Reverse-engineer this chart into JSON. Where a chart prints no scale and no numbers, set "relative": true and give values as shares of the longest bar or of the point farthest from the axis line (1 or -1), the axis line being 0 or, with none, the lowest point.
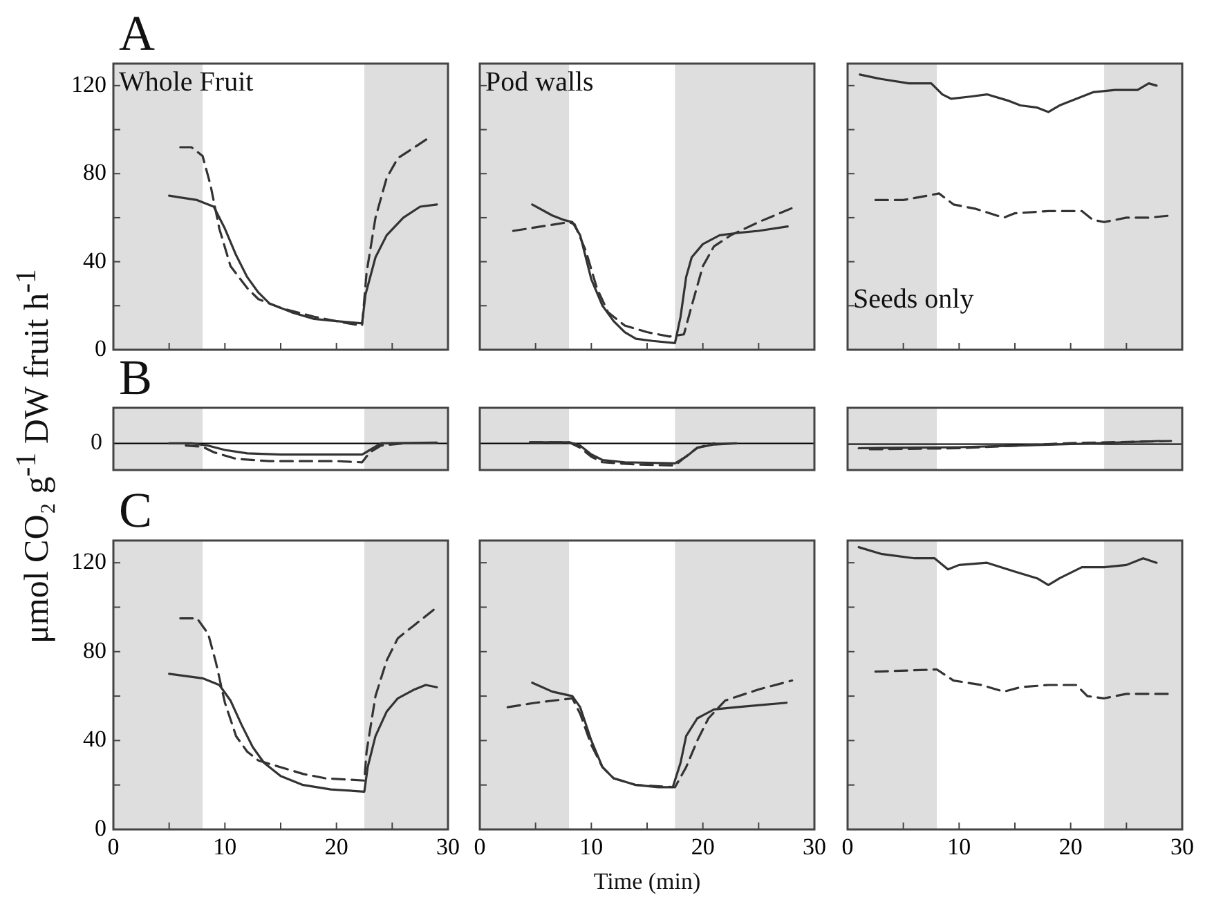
{
  "chart_data": [
    {
      "type": "line",
      "title": "A",
      "annotations": [
        "Whole Fruit"
      ],
      "xlim": [
        0,
        30
      ],
      "xticks": [
        0,
        {
          "value": 5,
          "label": null
        },
        10,
        {
          "value": 15,
          "label": null
        },
        20,
        {
          "value": 25,
          "label": null
        },
        30
      ],
      "ylim": [
        0,
        130
      ],
      "yticks": [
        0,
        {
          "value": 20,
          "label": null
        },
        40,
        {
          "value": 60,
          "label": null
        },
        80,
        {
          "value": 100,
          "label": null
        },
        120
      ],
      "tick_labels": "y",
      "bands": [
        {
          "axis": "x",
          "from": 0,
          "to": 8,
          "color": "#dedede"
        },
        {
          "axis": "x",
          "from": 22.5,
          "to": 30,
          "color": "#dedede"
        }
      ],
      "series": [
        {
          "color": "#333333",
          "line_style": "solid",
          "x": [
            5,
            7.5,
            9,
            10,
            11,
            12,
            13,
            14,
            16,
            18,
            20,
            22.3,
            22.6,
            23.5,
            24.5,
            26,
            27.5,
            29
          ],
          "values": [
            70,
            68,
            65,
            55,
            43,
            33,
            26,
            21,
            17,
            14,
            13,
            12,
            25,
            42,
            52,
            60,
            65,
            66
          ]
        },
        {
          "color": "#333333",
          "line_style": "dashed",
          "x": [
            6,
            7,
            8,
            8.7,
            9.5,
            10.5,
            12,
            13,
            15,
            18,
            21,
            22.3,
            22.7,
            23.5,
            24.5,
            25.5,
            27,
            28.5
          ],
          "values": [
            92,
            92,
            88,
            75,
            55,
            38,
            28,
            23,
            19,
            15,
            12,
            11,
            35,
            60,
            78,
            87,
            92,
            97
          ]
        }
      ]
    },
    {
      "type": "line",
      "annotations": [
        "Pod walls"
      ],
      "xlim": [
        0,
        30
      ],
      "xticks": [
        0,
        {
          "value": 5,
          "label": null
        },
        10,
        {
          "value": 15,
          "label": null
        },
        20,
        {
          "value": 25,
          "label": null
        },
        30
      ],
      "ylim": [
        0,
        130
      ],
      "yticks": [
        0,
        {
          "value": 20,
          "label": null
        },
        40,
        {
          "value": 60,
          "label": null
        },
        80,
        {
          "value": 100,
          "label": null
        },
        120
      ],
      "tick_labels": false,
      "bands": [
        {
          "axis": "x",
          "from": 0,
          "to": 8,
          "color": "#dedede"
        },
        {
          "axis": "x",
          "from": 17.5,
          "to": 30,
          "color": "#dedede"
        }
      ],
      "series": [
        {
          "color": "#333333",
          "line_style": "solid",
          "x": [
            4.7,
            6.5,
            7.5,
            8.3,
            9,
            9.5,
            10,
            11,
            12,
            13,
            14,
            15.5,
            17.5,
            18,
            18.5,
            19,
            20,
            21.5,
            23,
            25,
            27.6
          ],
          "values": [
            66,
            61,
            59,
            58,
            52,
            42,
            32,
            20,
            13,
            8,
            5,
            4,
            3,
            15,
            33,
            42,
            48,
            52,
            53,
            54,
            56
          ]
        },
        {
          "color": "#333333",
          "line_style": "dashed",
          "x": [
            3,
            5.5,
            8,
            8.5,
            9.5,
            10.5,
            11.5,
            13,
            15,
            17,
            18.3,
            19,
            20,
            21,
            22.5,
            25,
            28.3
          ],
          "values": [
            54,
            56,
            58,
            57,
            45,
            28,
            17,
            11,
            8,
            6,
            7,
            20,
            38,
            47,
            52,
            58,
            65
          ]
        }
      ]
    },
    {
      "type": "line",
      "annotations": [
        "Seeds only"
      ],
      "xlim": [
        0,
        30
      ],
      "xticks": [
        0,
        {
          "value": 5,
          "label": null
        },
        10,
        {
          "value": 15,
          "label": null
        },
        20,
        {
          "value": 25,
          "label": null
        },
        30
      ],
      "ylim": [
        0,
        130
      ],
      "yticks": [
        0,
        {
          "value": 20,
          "label": null
        },
        40,
        {
          "value": 60,
          "label": null
        },
        80,
        {
          "value": 100,
          "label": null
        },
        120
      ],
      "tick_labels": false,
      "bands": [
        {
          "axis": "x",
          "from": 0,
          "to": 8,
          "color": "#dedede"
        },
        {
          "axis": "x",
          "from": 23,
          "to": 30,
          "color": "#dedede"
        }
      ],
      "series": [
        {
          "color": "#333333",
          "line_style": "solid",
          "x": [
            1.1,
            3,
            5.5,
            7.5,
            8.5,
            9.3,
            11,
            12.5,
            14.5,
            15.5,
            17,
            18,
            19,
            20.5,
            22,
            24,
            26,
            27,
            27.7
          ],
          "values": [
            125,
            123,
            121,
            121,
            116,
            114,
            115,
            116,
            113,
            111,
            110,
            108,
            111,
            114,
            117,
            118,
            118,
            121,
            120
          ]
        },
        {
          "color": "#333333",
          "line_style": "dashed",
          "x": [
            2.5,
            5,
            8.2,
            9.5,
            11.5,
            14,
            15,
            18,
            21,
            22,
            23,
            25,
            27,
            29
          ],
          "values": [
            68,
            68,
            71,
            66,
            64,
            60,
            62,
            63,
            63,
            59,
            58,
            60,
            60,
            61
          ]
        }
      ]
    },
    {
      "type": "line",
      "title": "B",
      "ylabel": "μmol CO₂ g$^{-1}$ DW fruit h$^{-1}$",
      "relative": true,
      "xlim": [
        0,
        30
      ],
      "tick_labels": false,
      "ref_lines": [
        {
          "axis": "y",
          "value": 0,
          "label": "0",
          "color": "#000000"
        }
      ],
      "bands": [
        {
          "axis": "x",
          "from": 0,
          "to": 8,
          "color": "#dedede"
        },
        {
          "axis": "x",
          "from": 22.5,
          "to": 30,
          "color": "#dedede"
        }
      ],
      "series": [
        {
          "color": "#333333",
          "line_style": "solid",
          "x": [
            5,
            7,
            8.5,
            10,
            12,
            15,
            20,
            22.3,
            23,
            24,
            29
          ],
          "values": [
            0,
            0,
            -0.12,
            -0.35,
            -0.53,
            -0.59,
            -0.59,
            -0.59,
            -0.35,
            0,
            0.04
          ]
        },
        {
          "color": "#333333",
          "line_style": "dashed",
          "x": [
            6.5,
            8,
            9,
            11,
            14,
            20,
            22.3,
            23,
            24,
            26
          ],
          "values": [
            -0.12,
            -0.18,
            -0.47,
            -0.82,
            -0.94,
            -0.94,
            -1,
            -0.47,
            -0.12,
            0
          ]
        }
      ]
    },
    {
      "type": "line",
      "relative": true,
      "xlim": [
        0,
        30
      ],
      "tick_labels": false,
      "ref_lines": [
        {
          "axis": "y",
          "value": 0,
          "color": "#000000"
        }
      ],
      "bands": [
        {
          "axis": "x",
          "from": 0,
          "to": 8,
          "color": "#dedede"
        },
        {
          "axis": "x",
          "from": 17.5,
          "to": 30,
          "color": "#dedede"
        }
      ],
      "series": [
        {
          "color": "#333333",
          "line_style": "solid",
          "x": [
            4.5,
            8,
            9,
            10,
            11,
            13,
            17.5,
            18.5,
            19.5,
            21,
            23
          ],
          "values": [
            0.05,
            0.05,
            -0.1,
            -0.5,
            -0.75,
            -0.85,
            -0.9,
            -0.6,
            -0.2,
            -0.05,
            0
          ]
        },
        {
          "color": "#333333",
          "line_style": "dashed",
          "x": [
            4.5,
            8,
            9,
            10,
            11,
            14,
            17.5,
            18.2,
            19.5,
            21
          ],
          "values": [
            0.05,
            0.05,
            -0.2,
            -0.6,
            -0.85,
            -0.95,
            -1,
            -0.7,
            -0.2,
            0
          ]
        }
      ]
    },
    {
      "type": "line",
      "relative": true,
      "xlim": [
        0,
        30
      ],
      "tick_labels": false,
      "ref_lines": [
        {
          "axis": "y",
          "value": 0,
          "color": "#000000"
        }
      ],
      "bands": [
        {
          "axis": "x",
          "from": 0,
          "to": 8,
          "color": "#dedede"
        },
        {
          "axis": "x",
          "from": 23,
          "to": 30,
          "color": "#dedede"
        }
      ],
      "series": [
        {
          "color": "#333333",
          "line_style": "solid",
          "x": [
            1,
            10,
            20,
            28
          ],
          "values": [
            -0.8,
            -0.6,
            0,
            0.6
          ]
        },
        {
          "color": "#333333",
          "line_style": "dashed",
          "x": [
            2,
            10,
            20,
            29
          ],
          "values": [
            -1,
            -0.8,
            0.2,
            0.6
          ]
        }
      ]
    },
    {
      "type": "line",
      "title": "C",
      "xlim": [
        0,
        30
      ],
      "xticks": [
        0,
        {
          "value": 5,
          "label": null
        },
        10,
        {
          "value": 15,
          "label": null
        },
        20,
        {
          "value": 25,
          "label": null
        },
        30
      ],
      "ylim": [
        0,
        130
      ],
      "yticks": [
        0,
        {
          "value": 20,
          "label": null
        },
        40,
        {
          "value": 60,
          "label": null
        },
        80,
        {
          "value": 100,
          "label": null
        },
        120
      ],
      "bands": [
        {
          "axis": "x",
          "from": 0,
          "to": 8,
          "color": "#dedede"
        },
        {
          "axis": "x",
          "from": 22.5,
          "to": 30,
          "color": "#dedede"
        }
      ],
      "series": [
        {
          "color": "#333333",
          "line_style": "solid",
          "x": [
            5,
            6.5,
            8,
            9.5,
            10.5,
            11.5,
            12.5,
            13.5,
            15,
            17,
            19.5,
            22.5,
            22.8,
            23.5,
            24.5,
            25.5,
            27,
            28,
            29
          ],
          "values": [
            70,
            69,
            68,
            65,
            58,
            47,
            37,
            30,
            24,
            20,
            18,
            17,
            28,
            42,
            53,
            59,
            63,
            65,
            64
          ]
        },
        {
          "color": "#333333",
          "line_style": "dashed",
          "x": [
            6,
            7.5,
            8.5,
            9.2,
            10,
            11,
            12,
            13,
            15,
            17,
            19,
            22.5,
            22.7,
            23.5,
            24.5,
            25.5,
            27,
            29
          ],
          "values": [
            95,
            95,
            88,
            75,
            57,
            42,
            35,
            31,
            28,
            25,
            23,
            22,
            35,
            60,
            76,
            86,
            92,
            100
          ]
        }
      ]
    },
    {
      "type": "line",
      "xlabel": "Time (min)",
      "xlim": [
        0,
        30
      ],
      "xticks": [
        0,
        {
          "value": 5,
          "label": null
        },
        10,
        {
          "value": 15,
          "label": null
        },
        20,
        {
          "value": 25,
          "label": null
        },
        30
      ],
      "ylim": [
        0,
        130
      ],
      "yticks": [
        0,
        {
          "value": 20,
          "label": null
        },
        40,
        {
          "value": 60,
          "label": null
        },
        80,
        {
          "value": 100,
          "label": null
        },
        120
      ],
      "tick_labels": "x",
      "bands": [
        {
          "axis": "x",
          "from": 0,
          "to": 8,
          "color": "#dedede"
        },
        {
          "axis": "x",
          "from": 17.5,
          "to": 30,
          "color": "#dedede"
        }
      ],
      "series": [
        {
          "color": "#333333",
          "line_style": "solid",
          "x": [
            4.7,
            6.5,
            8.3,
            9,
            10,
            11,
            12,
            14,
            16,
            17.3,
            18,
            18.5,
            19.5,
            21,
            23,
            27.5
          ],
          "values": [
            66,
            62,
            60,
            55,
            40,
            28,
            23,
            20,
            19,
            19,
            30,
            42,
            50,
            54,
            55,
            57
          ]
        },
        {
          "color": "#333333",
          "line_style": "dashed",
          "x": [
            2.5,
            5,
            8.3,
            9,
            10,
            11,
            12,
            14,
            17.5,
            18.5,
            19.5,
            20.5,
            22,
            25,
            28
          ],
          "values": [
            55,
            57,
            59,
            52,
            38,
            28,
            23,
            20,
            19,
            28,
            40,
            50,
            58,
            63,
            67
          ]
        }
      ]
    },
    {
      "type": "line",
      "xlim": [
        0,
        30
      ],
      "xticks": [
        0,
        {
          "value": 5,
          "label": null
        },
        10,
        {
          "value": 15,
          "label": null
        },
        20,
        {
          "value": 25,
          "label": null
        },
        30
      ],
      "ylim": [
        0,
        130
      ],
      "yticks": [
        0,
        {
          "value": 20,
          "label": null
        },
        40,
        {
          "value": 60,
          "label": null
        },
        80,
        {
          "value": 100,
          "label": null
        },
        120
      ],
      "tick_labels": "x",
      "bands": [
        {
          "axis": "x",
          "from": 0,
          "to": 8,
          "color": "#dedede"
        },
        {
          "axis": "x",
          "from": 23,
          "to": 30,
          "color": "#dedede"
        }
      ],
      "series": [
        {
          "color": "#333333",
          "line_style": "solid",
          "x": [
            1,
            3,
            6,
            7.8,
            9,
            10,
            12.5,
            15,
            17,
            18,
            19,
            21,
            23,
            25,
            26.5,
            27.7
          ],
          "values": [
            127,
            124,
            122,
            122,
            117,
            119,
            120,
            116,
            113,
            110,
            113,
            118,
            118,
            119,
            122,
            120
          ]
        },
        {
          "color": "#333333",
          "line_style": "dashed",
          "x": [
            2.5,
            8,
            9.5,
            12,
            14,
            15.5,
            18,
            20.5,
            21.5,
            23,
            25,
            29
          ],
          "values": [
            71,
            72,
            67,
            65,
            62,
            64,
            65,
            65,
            60,
            59,
            61,
            61
          ]
        }
      ]
    }
  ]
}
